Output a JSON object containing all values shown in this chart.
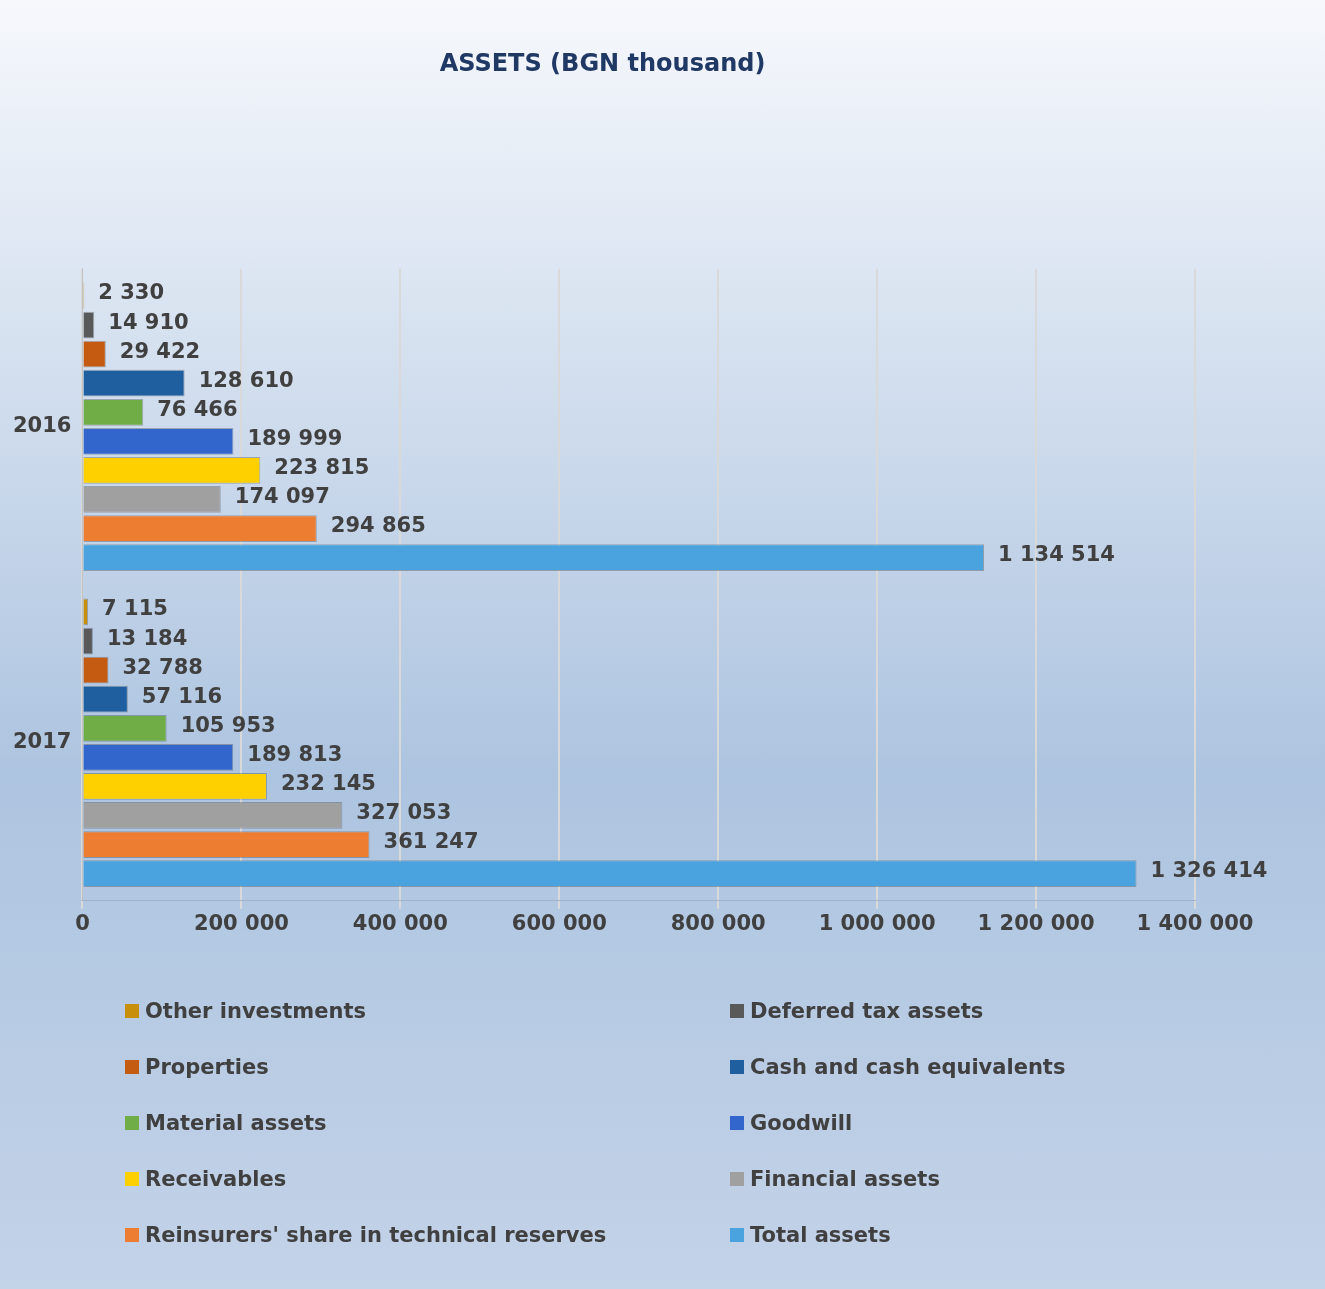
{
  "chart_data": {
    "type": "bar",
    "orientation": "horizontal",
    "title": "ASSETS (BGN thousand)",
    "categories": [
      "2016",
      "2017"
    ],
    "series": [
      {
        "name": "Other investments",
        "color": "#c8900a",
        "values": [
          2330,
          7115
        ],
        "value_labels": [
          "2 330",
          "7 115"
        ]
      },
      {
        "name": "Deferred tax assets",
        "color": "#595959",
        "values": [
          14910,
          13184
        ],
        "value_labels": [
          "14 910",
          "13 184"
        ]
      },
      {
        "name": "Properties",
        "color": "#c55a11",
        "values": [
          29422,
          32788
        ],
        "value_labels": [
          "29 422",
          "32 788"
        ]
      },
      {
        "name": "Cash and cash equivalents",
        "color": "#1f5fa0",
        "values": [
          128610,
          57116
        ],
        "value_labels": [
          "128 610",
          "57 116"
        ]
      },
      {
        "name": "Material assets",
        "color": "#70ad47",
        "values": [
          76466,
          105953
        ],
        "value_labels": [
          "76 466",
          "105 953"
        ]
      },
      {
        "name": "Goodwill",
        "color": "#3366cc",
        "values": [
          189999,
          189813
        ],
        "value_labels": [
          "189 999",
          "189 813"
        ]
      },
      {
        "name": "Receivables",
        "color": "#ffd000",
        "values": [
          223815,
          232145
        ],
        "value_labels": [
          "223 815",
          "232 145"
        ]
      },
      {
        "name": "Financial assets",
        "color": "#a0a0a0",
        "values": [
          174097,
          327053
        ],
        "value_labels": [
          "174 097",
          "327 053"
        ]
      },
      {
        "name": "Reinsurers' share in technical reserves",
        "color": "#ed7d31",
        "values": [
          294865,
          361247
        ],
        "value_labels": [
          "294 865",
          "361 247"
        ]
      },
      {
        "name": "Total assets",
        "color": "#4aa3df",
        "values": [
          1134514,
          1326414
        ],
        "value_labels": [
          "1 134 514",
          "1 326 414"
        ]
      }
    ],
    "xlim": [
      0,
      1400000
    ],
    "xticks": [
      0,
      {
        "value": 200000,
        "label": "200 000"
      },
      {
        "value": 400000,
        "label": "400 000"
      },
      {
        "value": 600000,
        "label": "600 000"
      },
      {
        "value": 800000,
        "label": "800 000"
      },
      {
        "value": 1000000,
        "label": "1 000 000"
      },
      {
        "value": 1200000,
        "label": "1 200 000"
      },
      {
        "value": 1400000,
        "label": "1 400 000"
      }
    ],
    "grid": "x",
    "legend": "bottom"
  }
}
